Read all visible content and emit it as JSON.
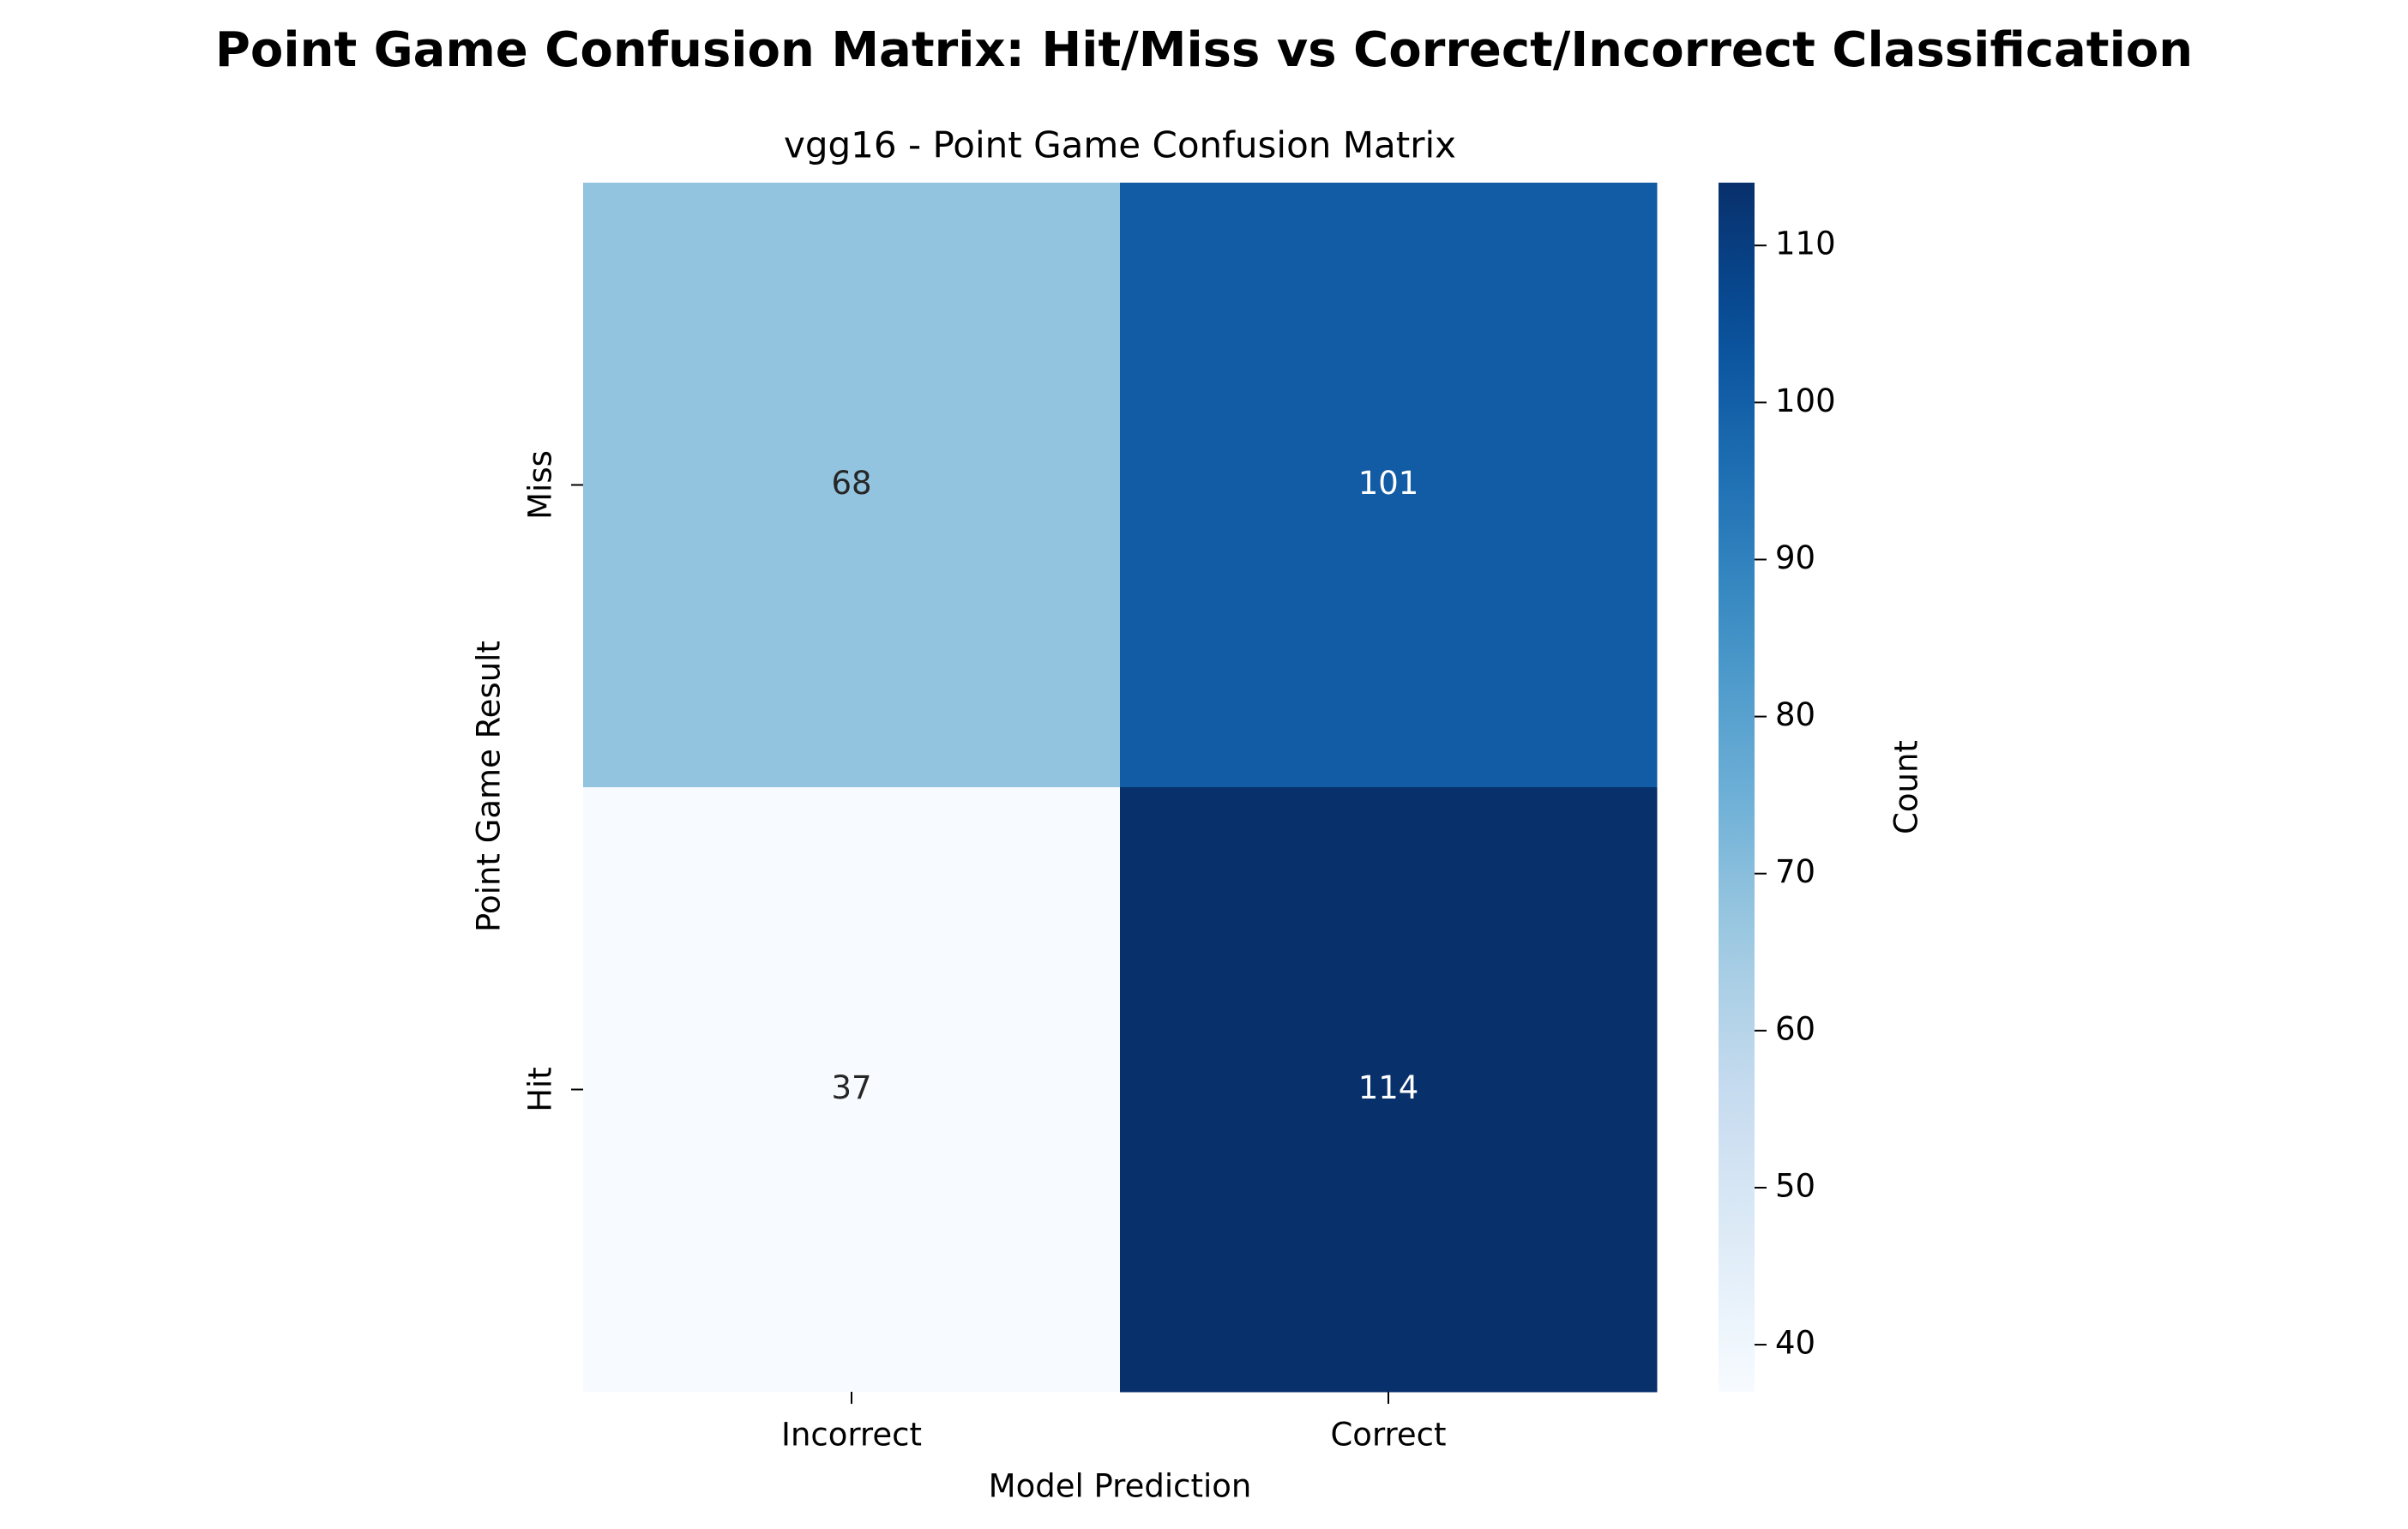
{
  "figure": {
    "suptitle": "Point Game Confusion Matrix: Hit/Miss vs Correct/Incorrect Classification"
  },
  "chart_data": {
    "type": "heatmap",
    "title": "vgg16 - Point Game Confusion Matrix",
    "xlabel": "Model Prediction",
    "ylabel": "Point Game Result",
    "x_categories": [
      "Incorrect",
      "Correct"
    ],
    "y_categories": [
      "Miss",
      "Hit"
    ],
    "values": [
      [
        68,
        101
      ],
      [
        37,
        114
      ]
    ],
    "colormap": "Blues",
    "colorbar": {
      "label": "Count",
      "range": [
        37,
        114
      ],
      "ticks": [
        40,
        50,
        60,
        70,
        80,
        90,
        100,
        110
      ]
    },
    "annotations": true,
    "grid": false
  }
}
